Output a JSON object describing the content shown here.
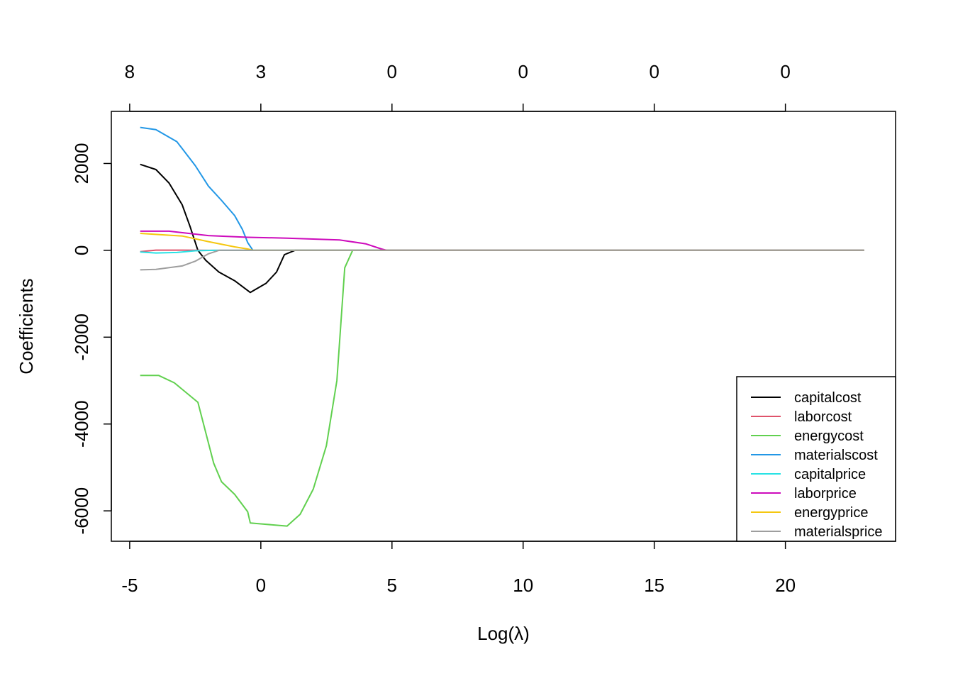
{
  "chart_data": {
    "type": "line",
    "xlabel": "Log(λ)",
    "ylabel": "Coefficients",
    "xlim": [
      -5.7,
      24.2
    ],
    "ylim": [
      -6700,
      3200
    ],
    "x_ticks": [
      -5,
      0,
      5,
      10,
      15,
      20
    ],
    "x_tick_labels": [
      "-5",
      "0",
      "5",
      "10",
      "15",
      "20"
    ],
    "y_ticks": [
      -6000,
      -4000,
      -2000,
      0,
      2000
    ],
    "y_tick_labels": [
      "-6000",
      "-4000",
      "-2000",
      "0",
      "2000"
    ],
    "top_axis_ticks": [
      -5,
      0,
      5,
      10,
      15,
      20
    ],
    "top_axis_labels": [
      "8",
      "3",
      "0",
      "0",
      "0",
      "0"
    ],
    "legend_position": "bottom-right",
    "grid": false,
    "series": [
      {
        "name": "capitalcost",
        "color": "#000000",
        "points": [
          [
            -4.6,
            1980
          ],
          [
            -4.0,
            1860
          ],
          [
            -3.5,
            1550
          ],
          [
            -3.0,
            1050
          ],
          [
            -2.7,
            550
          ],
          [
            -2.4,
            0
          ],
          [
            -2.1,
            -230
          ],
          [
            -1.6,
            -500
          ],
          [
            -1.0,
            -700
          ],
          [
            -0.4,
            -970
          ],
          [
            0.2,
            -760
          ],
          [
            0.6,
            -500
          ],
          [
            0.9,
            -100
          ],
          [
            1.3,
            0
          ],
          [
            23.0,
            0
          ]
        ]
      },
      {
        "name": "laborcost",
        "color": "#DF536B",
        "points": [
          [
            -4.6,
            -30
          ],
          [
            -4.0,
            5
          ],
          [
            -3.0,
            5
          ],
          [
            -2.0,
            0
          ],
          [
            23.0,
            0
          ]
        ]
      },
      {
        "name": "energycost",
        "color": "#61D04F",
        "points": [
          [
            -4.6,
            -2880
          ],
          [
            -3.9,
            -2880
          ],
          [
            -3.3,
            -3050
          ],
          [
            -2.4,
            -3500
          ],
          [
            -1.8,
            -4900
          ],
          [
            -1.5,
            -5330
          ],
          [
            -1.0,
            -5620
          ],
          [
            -0.5,
            -6020
          ],
          [
            -0.4,
            -6280
          ],
          [
            0.0,
            -6300
          ],
          [
            1.0,
            -6350
          ],
          [
            1.5,
            -6080
          ],
          [
            2.0,
            -5500
          ],
          [
            2.5,
            -4500
          ],
          [
            2.9,
            -3000
          ],
          [
            3.2,
            -400
          ],
          [
            3.5,
            0
          ],
          [
            23.0,
            0
          ]
        ]
      },
      {
        "name": "materialscost",
        "color": "#2297E6",
        "points": [
          [
            -4.6,
            2830
          ],
          [
            -4.0,
            2780
          ],
          [
            -3.2,
            2500
          ],
          [
            -2.5,
            1950
          ],
          [
            -2.0,
            1480
          ],
          [
            -1.5,
            1150
          ],
          [
            -1.0,
            800
          ],
          [
            -0.7,
            480
          ],
          [
            -0.5,
            180
          ],
          [
            -0.3,
            0
          ],
          [
            23.0,
            0
          ]
        ]
      },
      {
        "name": "capitalprice",
        "color": "#28E2E5",
        "points": [
          [
            -4.6,
            -40
          ],
          [
            -4.0,
            -60
          ],
          [
            -3.2,
            -50
          ],
          [
            -2.5,
            -10
          ],
          [
            -1.8,
            0
          ],
          [
            23.0,
            0
          ]
        ]
      },
      {
        "name": "laborprice",
        "color": "#CD0BBC",
        "points": [
          [
            -4.6,
            440
          ],
          [
            -3.5,
            440
          ],
          [
            -2.0,
            340
          ],
          [
            -0.5,
            300
          ],
          [
            1.0,
            280
          ],
          [
            3.0,
            240
          ],
          [
            4.0,
            150
          ],
          [
            4.6,
            30
          ],
          [
            4.8,
            0
          ],
          [
            23.0,
            0
          ]
        ]
      },
      {
        "name": "energyprice",
        "color": "#F5C710",
        "points": [
          [
            -4.6,
            390
          ],
          [
            -3.0,
            330
          ],
          [
            -2.0,
            200
          ],
          [
            -1.0,
            80
          ],
          [
            -0.5,
            30
          ],
          [
            -0.3,
            0
          ],
          [
            23.0,
            0
          ]
        ]
      },
      {
        "name": "materialsprice",
        "color": "#9E9E9E",
        "points": [
          [
            -4.6,
            -450
          ],
          [
            -4.0,
            -440
          ],
          [
            -3.0,
            -360
          ],
          [
            -2.5,
            -250
          ],
          [
            -2.0,
            -80
          ],
          [
            -1.6,
            0
          ],
          [
            23.0,
            0
          ]
        ]
      }
    ]
  }
}
